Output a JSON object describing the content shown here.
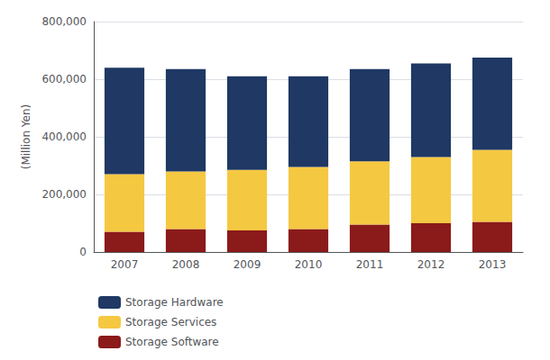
{
  "chart_data": {
    "type": "bar",
    "stacked": true,
    "grid": true,
    "legend": "lower left",
    "ylabel": "(Million Yen)",
    "categories": [
      "2007",
      "2008",
      "2009",
      "2010",
      "2011",
      "2012",
      "2013"
    ],
    "series": [
      {
        "name": "Storage Software",
        "color": "#8B1A1A",
        "values": [
          70000,
          80000,
          75000,
          80000,
          95000,
          100000,
          105000
        ]
      },
      {
        "name": "Storage Services",
        "color": "#F5C842",
        "values": [
          200000,
          200000,
          210000,
          215000,
          220000,
          230000,
          250000
        ]
      },
      {
        "name": "Storage Hardware",
        "color": "#1F3864",
        "values": [
          370000,
          355000,
          325000,
          315000,
          320000,
          325000,
          320000
        ]
      }
    ],
    "ylim": [
      0,
      800000
    ],
    "yticks": [
      0,
      {
        "value": 200000,
        "label": "200,000"
      },
      {
        "value": 400000,
        "label": "400,000"
      },
      {
        "value": 600000,
        "label": "600,000"
      },
      {
        "value": 800000,
        "label": "800,000"
      }
    ]
  }
}
